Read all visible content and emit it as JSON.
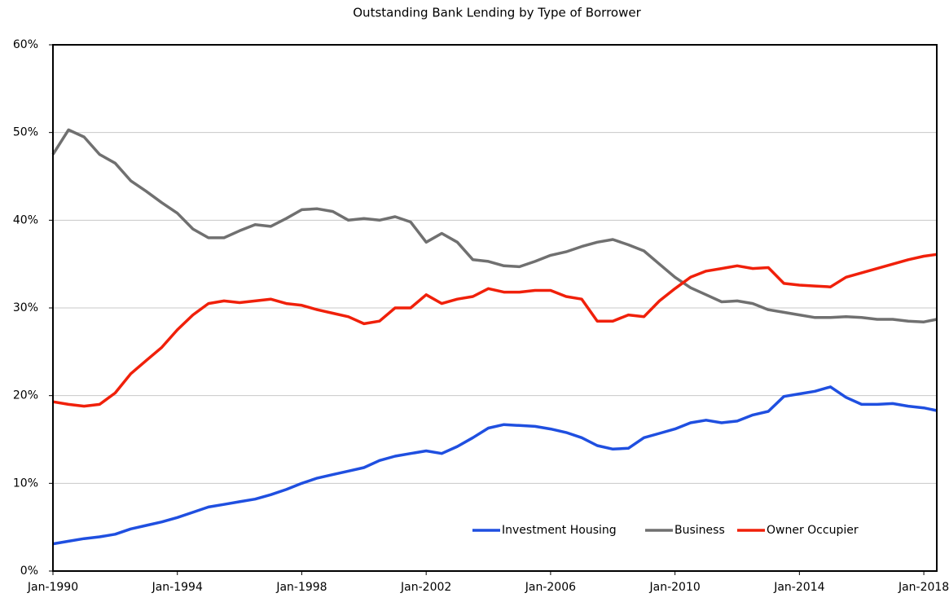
{
  "chart_data": {
    "type": "line",
    "title": "Outstanding Bank Lending by Type of Borrower",
    "x": [
      "Jan-1990",
      "Jul-1990",
      "Jan-1991",
      "Jul-1991",
      "Jan-1992",
      "Jul-1992",
      "Jan-1993",
      "Jul-1993",
      "Jan-1994",
      "Jul-1994",
      "Jan-1995",
      "Jul-1995",
      "Jan-1996",
      "Jul-1996",
      "Jan-1997",
      "Jul-1997",
      "Jan-1998",
      "Jul-1998",
      "Jan-1999",
      "Jul-1999",
      "Jan-2000",
      "Jul-2000",
      "Jan-2001",
      "Jul-2001",
      "Jan-2002",
      "Jul-2002",
      "Jan-2003",
      "Jul-2003",
      "Jan-2004",
      "Jul-2004",
      "Jan-2005",
      "Jul-2005",
      "Jan-2006",
      "Jul-2006",
      "Jan-2007",
      "Jul-2007",
      "Jan-2008",
      "Jul-2008",
      "Jan-2009",
      "Jul-2009",
      "Jan-2010",
      "Jul-2010",
      "Jan-2011",
      "Jul-2011",
      "Jan-2012",
      "Jul-2012",
      "Jan-2013",
      "Jul-2013",
      "Jan-2014",
      "Jul-2014",
      "Jan-2015",
      "Jul-2015",
      "Jan-2016",
      "Jul-2016",
      "Jan-2017",
      "Jul-2017",
      "Jan-2018",
      "Jun-2018"
    ],
    "series": [
      {
        "name": "Investment Housing",
        "color": "#1f4fe0",
        "values": [
          3.1,
          3.4,
          3.7,
          3.9,
          4.2,
          4.8,
          5.2,
          5.6,
          6.1,
          6.7,
          7.3,
          7.6,
          7.9,
          8.2,
          8.7,
          9.3,
          10.0,
          10.6,
          11.0,
          11.4,
          11.8,
          12.6,
          13.1,
          13.4,
          13.7,
          13.4,
          14.2,
          15.2,
          16.3,
          16.7,
          16.6,
          16.5,
          16.2,
          15.8,
          15.2,
          14.3,
          13.9,
          14.0,
          15.2,
          15.7,
          16.2,
          16.9,
          17.2,
          16.9,
          17.1,
          17.8,
          18.2,
          19.9,
          20.2,
          20.5,
          21.0,
          19.8,
          19.0,
          19.0,
          19.1,
          18.8,
          18.6,
          18.3
        ]
      },
      {
        "name": "Business",
        "color": "#707070",
        "values": [
          47.5,
          50.3,
          49.5,
          47.5,
          46.5,
          44.5,
          43.3,
          42.0,
          40.8,
          39.0,
          38.0,
          38.0,
          38.8,
          39.5,
          39.3,
          40.2,
          41.2,
          41.3,
          41.0,
          40.0,
          40.2,
          40.0,
          40.4,
          39.8,
          37.5,
          38.5,
          37.5,
          35.5,
          35.3,
          34.8,
          34.7,
          35.3,
          36.0,
          36.4,
          37.0,
          37.5,
          37.8,
          37.2,
          36.5,
          35.0,
          33.5,
          32.3,
          31.5,
          30.7,
          30.8,
          30.5,
          29.8,
          29.5,
          29.2,
          28.9,
          28.9,
          29.0,
          28.9,
          28.7,
          28.7,
          28.5,
          28.4,
          28.7
        ]
      },
      {
        "name": "Owner Occupier",
        "color": "#f0200a",
        "values": [
          19.3,
          19.0,
          18.8,
          19.0,
          20.3,
          22.5,
          24.0,
          25.5,
          27.5,
          29.2,
          30.5,
          30.8,
          30.6,
          30.8,
          31.0,
          30.5,
          30.3,
          29.8,
          29.4,
          29.0,
          28.2,
          28.5,
          30.0,
          30.0,
          31.5,
          30.5,
          31.0,
          31.3,
          32.2,
          31.8,
          31.8,
          32.0,
          32.0,
          31.3,
          31.0,
          28.5,
          28.5,
          29.2,
          29.0,
          30.8,
          32.2,
          33.5,
          34.2,
          34.5,
          34.8,
          34.5,
          34.6,
          32.8,
          32.6,
          32.5,
          32.4,
          33.5,
          34.0,
          34.5,
          35.0,
          35.5,
          35.9,
          36.1
        ]
      }
    ],
    "xlim": [
      "Jan-1990",
      "Jun-2018"
    ],
    "xticks": [
      "Jan-1990",
      "Jan-1994",
      "Jan-1998",
      "Jan-2002",
      "Jan-2006",
      "Jan-2010",
      "Jan-2014",
      "Jan-2018"
    ],
    "ylim": [
      0,
      60
    ],
    "yticks": [
      {
        "value": 0,
        "label": "0%"
      },
      {
        "value": 10,
        "label": "10%"
      },
      {
        "value": 20,
        "label": "20%"
      },
      {
        "value": 30,
        "label": "30%"
      },
      {
        "value": 40,
        "label": "40%"
      },
      {
        "value": 50,
        "label": "50%"
      },
      {
        "value": 60,
        "label": "60%"
      }
    ],
    "grid": true,
    "legend": "lower right"
  }
}
